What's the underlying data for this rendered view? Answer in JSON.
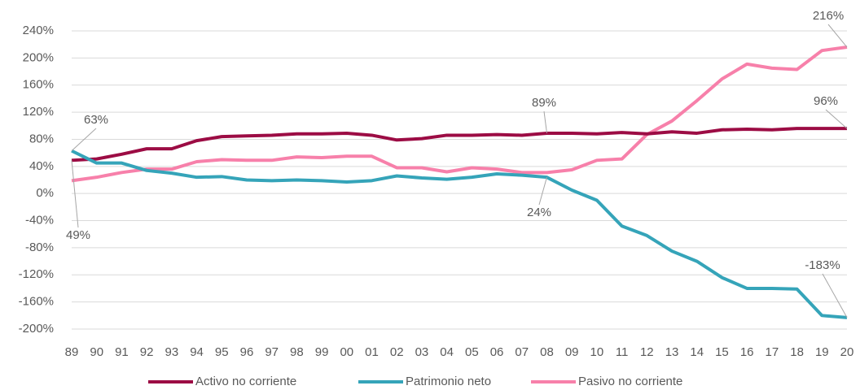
{
  "chart_data": {
    "type": "line",
    "categories": [
      "89",
      "90",
      "91",
      "92",
      "93",
      "94",
      "95",
      "96",
      "97",
      "98",
      "99",
      "00",
      "01",
      "02",
      "03",
      "04",
      "05",
      "06",
      "07",
      "08",
      "09",
      "10",
      "11",
      "12",
      "13",
      "14",
      "15",
      "16",
      "17",
      "18",
      "19",
      "20"
    ],
    "series": [
      {
        "name": "Activo no corriente",
        "color": "#9c0c44",
        "values": [
          49,
          51,
          58,
          66,
          66,
          78,
          84,
          85,
          86,
          88,
          88,
          89,
          86,
          79,
          81,
          86,
          86,
          87,
          86,
          89,
          89,
          88,
          90,
          88,
          91,
          89,
          94,
          95,
          94,
          96,
          96,
          96
        ],
        "value_labels": [
          "49%",
          null,
          null,
          null,
          null,
          null,
          null,
          null,
          null,
          null,
          null,
          null,
          null,
          null,
          null,
          null,
          null,
          null,
          null,
          "89%",
          null,
          null,
          null,
          null,
          null,
          null,
          null,
          null,
          null,
          null,
          null,
          "96%"
        ]
      },
      {
        "name": "Patrimonio neto",
        "color": "#35a4b9",
        "values": [
          63,
          45,
          45,
          34,
          30,
          24,
          25,
          20,
          19,
          20,
          19,
          17,
          19,
          26,
          23,
          21,
          24,
          29,
          27,
          24,
          5,
          -10,
          -48,
          -62,
          -85,
          -100,
          -124,
          -140,
          -140,
          -141,
          -180,
          -183
        ],
        "value_labels": [
          "63%",
          null,
          null,
          null,
          null,
          null,
          null,
          null,
          null,
          null,
          null,
          null,
          null,
          null,
          null,
          null,
          null,
          null,
          null,
          "24%",
          null,
          null,
          null,
          null,
          null,
          null,
          null,
          null,
          null,
          null,
          null,
          "-183%"
        ]
      },
      {
        "name": "Pasivo no corriente",
        "color": "#f780aa",
        "values": [
          19,
          24,
          31,
          36,
          36,
          47,
          50,
          49,
          49,
          54,
          53,
          55,
          55,
          38,
          38,
          32,
          38,
          36,
          31,
          31,
          35,
          49,
          51,
          87,
          107,
          137,
          169,
          191,
          185,
          183,
          211,
          216
        ],
        "value_labels": [
          null,
          null,
          null,
          null,
          null,
          null,
          null,
          null,
          null,
          null,
          null,
          null,
          null,
          null,
          null,
          null,
          null,
          null,
          null,
          null,
          null,
          null,
          null,
          null,
          null,
          null,
          null,
          null,
          null,
          null,
          null,
          "216%"
        ]
      }
    ],
    "ylim": [
      -200,
      240
    ],
    "yticks": [
      {
        "value": -200,
        "label": "-200%"
      },
      {
        "value": -160,
        "label": "-160%"
      },
      {
        "value": -120,
        "label": "-120%"
      },
      {
        "value": -80,
        "label": "-80%"
      },
      {
        "value": -40,
        "label": "-40%"
      },
      {
        "value": 0,
        "label": "0%"
      },
      {
        "value": 40,
        "label": "40%"
      },
      {
        "value": 80,
        "label": "80%"
      },
      {
        "value": 120,
        "label": "120%"
      },
      {
        "value": 160,
        "label": "160%"
      },
      {
        "value": 200,
        "label": "200%"
      },
      {
        "value": 240,
        "label": "240%"
      }
    ],
    "grid": true,
    "legend": "bottom"
  }
}
